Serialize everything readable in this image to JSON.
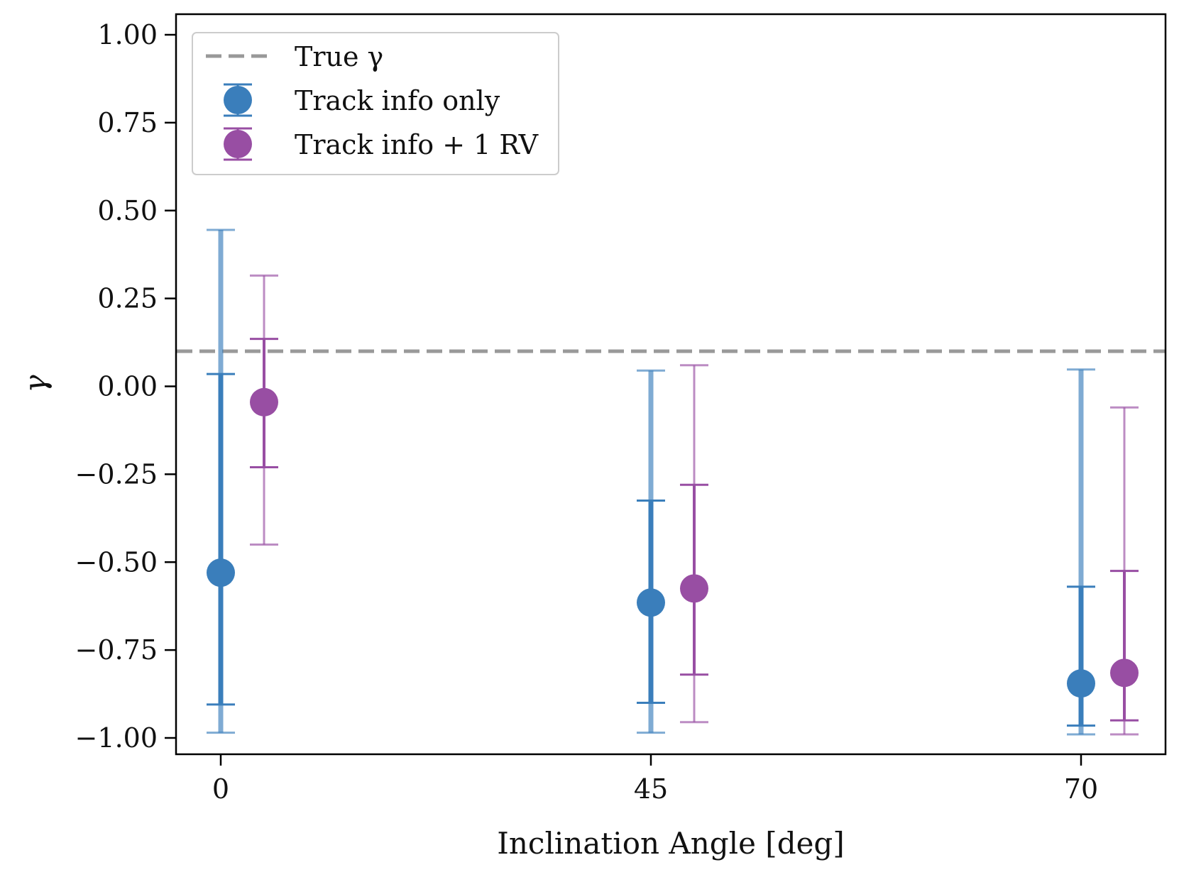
{
  "chart_data": {
    "type": "scatter",
    "subtype": "errorbar",
    "title": "",
    "xlabel": "Inclination Angle [deg]",
    "ylabel": "γ",
    "ylim": [
      -1.05,
      1.05
    ],
    "x_categories": [
      "0",
      "45",
      "70"
    ],
    "yticks": [
      1.0,
      0.75,
      0.5,
      0.25,
      0.0,
      -0.25,
      -0.5,
      -0.75,
      -1.0
    ],
    "ytick_labels": [
      "1.00",
      "0.75",
      "0.50",
      "0.25",
      "0.00",
      "−0.25",
      "−0.50",
      "−0.75",
      "−1.00"
    ],
    "reference_line": {
      "name": "True γ",
      "value": 0.1,
      "color": "#999999",
      "style": "dashed"
    },
    "legend_position": "top-left",
    "series": [
      {
        "name": "Track info only",
        "color": "#3a7ebb",
        "points": [
          {
            "x": "0",
            "y": -0.53,
            "inner": [
              -0.905,
              0.035
            ],
            "outer": [
              -0.985,
              0.445
            ]
          },
          {
            "x": "45",
            "y": -0.615,
            "inner": [
              -0.9,
              -0.325
            ],
            "outer": [
              -0.985,
              0.045
            ]
          },
          {
            "x": "70",
            "y": -0.845,
            "inner": [
              -0.965,
              -0.57
            ],
            "outer": [
              -0.99,
              0.048
            ]
          }
        ]
      },
      {
        "name": "Track info + 1 RV",
        "color": "#984ea3",
        "points": [
          {
            "x": "0",
            "y": -0.045,
            "inner": [
              -0.23,
              0.135
            ],
            "outer": [
              -0.45,
              0.315
            ]
          },
          {
            "x": "45",
            "y": -0.575,
            "inner": [
              -0.82,
              -0.28
            ],
            "outer": [
              -0.955,
              0.06
            ]
          },
          {
            "x": "70",
            "y": -0.815,
            "inner": [
              -0.95,
              -0.525
            ],
            "outer": [
              -0.99,
              -0.06
            ]
          }
        ]
      }
    ]
  }
}
